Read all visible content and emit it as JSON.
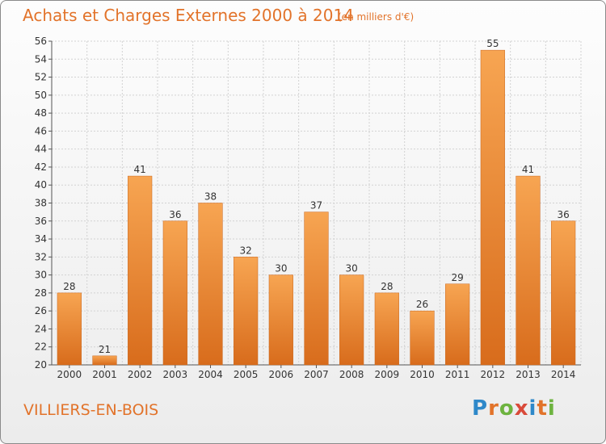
{
  "header": {
    "title": "Achats et Charges Externes 2000 à 2014",
    "subtitle": "(en milliers d'€)"
  },
  "footer": {
    "commune": "VILLIERS-EN-BOIS",
    "logo_letters": [
      "P",
      "r",
      "o",
      "x",
      "i",
      "t",
      "i"
    ],
    "logo_colors": [
      "#2e88c9",
      "#e2732a",
      "#6db33f",
      "#d94a3a",
      "#2e88c9",
      "#e2732a",
      "#6db33f"
    ]
  },
  "chart_data": {
    "type": "bar",
    "title": "Achats et Charges Externes 2000 à 2014",
    "subtitle": "(en milliers d'€)",
    "xlabel": "",
    "ylabel": "",
    "categories": [
      "2000",
      "2001",
      "2002",
      "2003",
      "2004",
      "2005",
      "2006",
      "2007",
      "2008",
      "2009",
      "2010",
      "2011",
      "2012",
      "2013",
      "2014"
    ],
    "values": [
      28,
      21,
      41,
      36,
      38,
      32,
      30,
      37,
      30,
      28,
      26,
      29,
      55,
      41,
      36
    ],
    "ylim": [
      20,
      56
    ],
    "yticks": [
      20,
      22,
      24,
      26,
      28,
      30,
      32,
      34,
      36,
      38,
      40,
      42,
      44,
      46,
      48,
      50,
      52,
      54,
      56
    ],
    "grid": true,
    "legend": "none",
    "bar_color_top": "#f7a552",
    "bar_color_bottom": "#d86c1c"
  }
}
